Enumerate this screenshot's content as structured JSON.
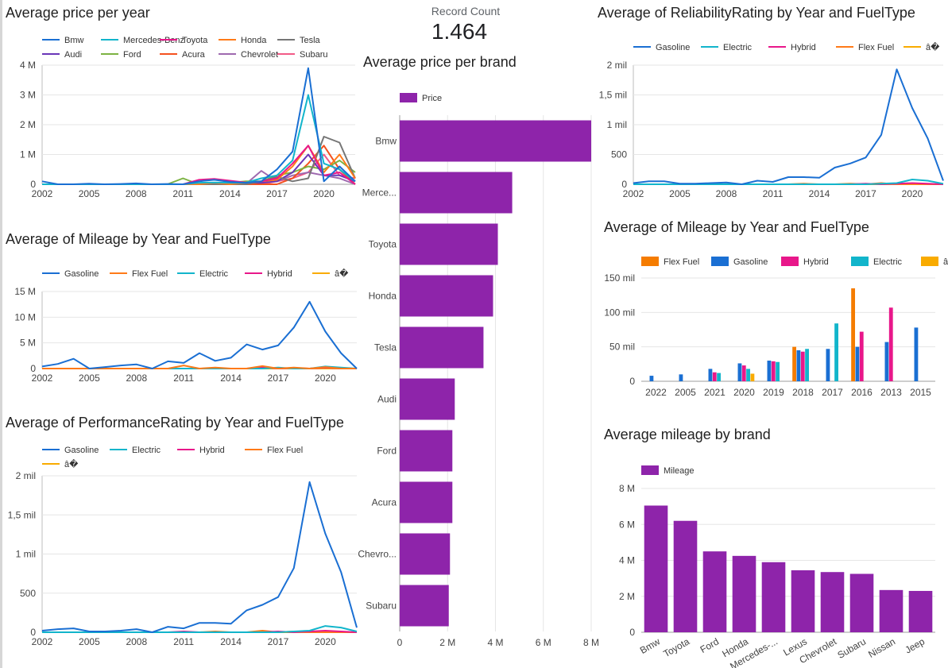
{
  "kpi": {
    "label": "Record Count",
    "value": "1.464"
  },
  "chart_data": [
    {
      "id": "price_per_year",
      "type": "line",
      "title": "Average price per year",
      "x": [
        2002,
        2003,
        2004,
        2005,
        2006,
        2007,
        2008,
        2009,
        2010,
        2011,
        2012,
        2013,
        2014,
        2015,
        2016,
        2017,
        2018,
        2019,
        2020,
        2021,
        2022
      ],
      "xticks": [
        2002,
        2005,
        2008,
        2011,
        2014,
        2017,
        2020
      ],
      "yticks": [
        {
          "v": 0,
          "label": "0"
        },
        {
          "v": 1000000,
          "label": "1 M"
        },
        {
          "v": 2000000,
          "label": "2 M"
        },
        {
          "v": 3000000,
          "label": "3 M"
        },
        {
          "v": 4000000,
          "label": "4 M"
        }
      ],
      "ylim": [
        0,
        4000000
      ],
      "legend_columns": 5,
      "series": [
        {
          "name": "Bmw",
          "color": "#1a6fd3",
          "values": [
            100000,
            0,
            0,
            20000,
            0,
            10000,
            30000,
            0,
            10000,
            0,
            100000,
            150000,
            80000,
            50000,
            100000,
            500000,
            1100000,
            3900000,
            100000,
            600000,
            100000
          ]
        },
        {
          "name": "Mercedes-Benz",
          "color": "#12b5cb",
          "values": [
            0,
            0,
            0,
            0,
            0,
            0,
            0,
            0,
            0,
            0,
            50000,
            60000,
            50000,
            50000,
            200000,
            300000,
            800000,
            3000000,
            700000,
            500000,
            100000
          ]
        },
        {
          "name": "Toyota",
          "color": "#e8178a",
          "values": [
            0,
            0,
            0,
            0,
            0,
            0,
            0,
            0,
            0,
            0,
            150000,
            180000,
            120000,
            60000,
            100000,
            200000,
            700000,
            1300000,
            300000,
            400000,
            0
          ]
        },
        {
          "name": "Honda",
          "color": "#ff7a18",
          "values": [
            0,
            0,
            0,
            0,
            0,
            0,
            0,
            0,
            0,
            0,
            0,
            50000,
            0,
            50000,
            100000,
            150000,
            600000,
            1300000,
            400000,
            1000000,
            200000
          ]
        },
        {
          "name": "Tesla",
          "color": "#767676",
          "values": [
            0,
            0,
            0,
            0,
            0,
            0,
            0,
            0,
            0,
            0,
            0,
            0,
            0,
            0,
            100000,
            250000,
            100000,
            200000,
            1600000,
            1400000,
            200000
          ]
        },
        {
          "name": "Audi",
          "color": "#6a36b8",
          "values": [
            0,
            0,
            0,
            0,
            0,
            0,
            0,
            0,
            0,
            0,
            0,
            0,
            0,
            50000,
            50000,
            100000,
            400000,
            1000000,
            300000,
            300000,
            100000
          ]
        },
        {
          "name": "Ford",
          "color": "#7cb342",
          "values": [
            0,
            0,
            0,
            0,
            0,
            0,
            0,
            0,
            0,
            200000,
            0,
            0,
            50000,
            100000,
            100000,
            300000,
            400000,
            600000,
            500000,
            800000,
            400000
          ]
        },
        {
          "name": "Acura",
          "color": "#f4511e",
          "values": [
            0,
            0,
            0,
            0,
            0,
            0,
            0,
            0,
            0,
            0,
            0,
            0,
            0,
            0,
            0,
            0,
            200000,
            700000,
            1300000,
            500000,
            0
          ]
        },
        {
          "name": "Chevrolet",
          "color": "#9e69af",
          "values": [
            0,
            0,
            0,
            0,
            0,
            0,
            0,
            0,
            0,
            0,
            0,
            0,
            0,
            0,
            450000,
            100000,
            300000,
            400000,
            300000,
            200000,
            0
          ]
        },
        {
          "name": "Subaru",
          "color": "#f25a87",
          "values": [
            0,
            0,
            0,
            0,
            0,
            0,
            0,
            0,
            0,
            0,
            0,
            0,
            0,
            0,
            0,
            100000,
            200000,
            400000,
            1000000,
            300000,
            200000
          ]
        }
      ]
    },
    {
      "id": "mileage_by_year",
      "type": "line",
      "title": "Average of Mileage by Year and FuelType",
      "x": [
        2002,
        2003,
        2004,
        2005,
        2006,
        2007,
        2008,
        2009,
        2010,
        2011,
        2012,
        2013,
        2014,
        2015,
        2016,
        2017,
        2018,
        2019,
        2020,
        2021,
        2022
      ],
      "xticks": [
        2002,
        2005,
        2008,
        2011,
        2014,
        2017,
        2020
      ],
      "yticks": [
        {
          "v": 0,
          "label": "0"
        },
        {
          "v": 5000000,
          "label": "5 M"
        },
        {
          "v": 10000000,
          "label": "10 M"
        },
        {
          "v": 15000000,
          "label": "15 M"
        }
      ],
      "ylim": [
        0,
        15000000
      ],
      "legend_columns": 5,
      "series": [
        {
          "name": "Gasoline",
          "color": "#1a6fd3",
          "values": [
            400000,
            900000,
            1900000,
            0,
            300000,
            600000,
            800000,
            0,
            1400000,
            1100000,
            3000000,
            1500000,
            2100000,
            4700000,
            3700000,
            4500000,
            8000000,
            13000000,
            7200000,
            3000000,
            0
          ]
        },
        {
          "name": "Flex Fuel",
          "color": "#ff7a18",
          "values": [
            0,
            0,
            0,
            0,
            0,
            0,
            0,
            0,
            0,
            600000,
            0,
            200000,
            0,
            0,
            500000,
            0,
            200000,
            0,
            300000,
            0,
            0
          ]
        },
        {
          "name": "Electric",
          "color": "#12b5cb",
          "values": [
            0,
            0,
            0,
            0,
            0,
            0,
            0,
            0,
            0,
            0,
            0,
            0,
            0,
            0,
            0,
            200000,
            0,
            0,
            400000,
            200000,
            0
          ]
        },
        {
          "name": "Hybrid",
          "color": "#e8178a",
          "values": [
            0,
            0,
            0,
            0,
            0,
            0,
            0,
            0,
            0,
            0,
            0,
            0,
            0,
            0,
            300000,
            0,
            100000,
            0,
            200000,
            0,
            0
          ]
        },
        {
          "name": "â�",
          "color": "#f9ab00",
          "values": [
            0,
            0,
            0,
            0,
            0,
            0,
            0,
            0,
            0,
            0,
            0,
            0,
            0,
            0,
            0,
            0,
            0,
            0,
            0,
            0,
            0
          ]
        }
      ]
    },
    {
      "id": "performance_by_year",
      "type": "line",
      "title": "Average of PerformanceRating by Year and FuelType",
      "x": [
        2002,
        2003,
        2004,
        2005,
        2006,
        2007,
        2008,
        2009,
        2010,
        2011,
        2012,
        2013,
        2014,
        2015,
        2016,
        2017,
        2018,
        2019,
        2020,
        2021,
        2022
      ],
      "xticks": [
        2002,
        2005,
        2008,
        2011,
        2014,
        2017,
        2020
      ],
      "yticks": [
        {
          "v": 0,
          "label": "0"
        },
        {
          "v": 500,
          "label": "500"
        },
        {
          "v": 1000,
          "label": "1 mil"
        },
        {
          "v": 1500,
          "label": "1,5 mil"
        },
        {
          "v": 2000,
          "label": "2 mil"
        }
      ],
      "ylim": [
        0,
        2000
      ],
      "legend_columns": 4,
      "series": [
        {
          "name": "Gasoline",
          "color": "#1a6fd3",
          "values": [
            20,
            40,
            50,
            10,
            10,
            20,
            40,
            0,
            70,
            50,
            120,
            120,
            110,
            280,
            350,
            450,
            820,
            1920,
            1260,
            770,
            60
          ]
        },
        {
          "name": "Electric",
          "color": "#12b5cb",
          "values": [
            0,
            0,
            0,
            0,
            0,
            0,
            0,
            0,
            0,
            0,
            0,
            0,
            0,
            0,
            0,
            0,
            10,
            20,
            80,
            60,
            10
          ]
        },
        {
          "name": "Hybrid",
          "color": "#e8178a",
          "values": [
            0,
            0,
            0,
            0,
            0,
            0,
            0,
            0,
            0,
            10,
            0,
            0,
            0,
            0,
            0,
            10,
            0,
            10,
            20,
            10,
            0
          ]
        },
        {
          "name": "Flex Fuel",
          "color": "#ff7a18",
          "values": [
            0,
            0,
            0,
            0,
            0,
            0,
            0,
            0,
            0,
            0,
            0,
            10,
            0,
            0,
            20,
            0,
            10,
            0,
            0,
            0,
            0
          ]
        },
        {
          "name": "â�",
          "color": "#f9ab00",
          "values": [
            0,
            0,
            0,
            0,
            0,
            0,
            0,
            0,
            0,
            0,
            0,
            0,
            0,
            0,
            0,
            0,
            0,
            0,
            0,
            0,
            0
          ]
        }
      ]
    },
    {
      "id": "price_per_brand",
      "type": "bar",
      "orientation": "horizontal",
      "title": "Average price per brand",
      "categories": [
        "Bmw",
        "Merce...",
        "Toyota",
        "Honda",
        "Tesla",
        "Audi",
        "Ford",
        "Acura",
        "Chevro...",
        "Subaru"
      ],
      "series": [
        {
          "name": "Price",
          "color": "#8e24aa",
          "values": [
            8000000,
            4700000,
            4100000,
            3900000,
            3500000,
            2300000,
            2200000,
            2200000,
            2100000,
            2050000
          ]
        }
      ],
      "xticks": [
        {
          "v": 0,
          "label": "0"
        },
        {
          "v": 2000000,
          "label": "2 M"
        },
        {
          "v": 4000000,
          "label": "4 M"
        },
        {
          "v": 6000000,
          "label": "6 M"
        },
        {
          "v": 8000000,
          "label": "8 M"
        }
      ],
      "xlim": [
        0,
        8000000
      ]
    },
    {
      "id": "reliability_by_year",
      "type": "line",
      "title": "Average of ReliabilityRating by Year and FuelType",
      "x": [
        2002,
        2003,
        2004,
        2005,
        2006,
        2007,
        2008,
        2009,
        2010,
        2011,
        2012,
        2013,
        2014,
        2015,
        2016,
        2017,
        2018,
        2019,
        2020,
        2021,
        2022
      ],
      "xticks": [
        2002,
        2005,
        2008,
        2011,
        2014,
        2017,
        2020
      ],
      "yticks": [
        {
          "v": 0,
          "label": "0"
        },
        {
          "v": 500,
          "label": "500"
        },
        {
          "v": 1000,
          "label": "1 mil"
        },
        {
          "v": 1500,
          "label": "1,5 mil"
        },
        {
          "v": 2000,
          "label": "2 mil"
        }
      ],
      "ylim": [
        0,
        2000
      ],
      "legend_columns": 5,
      "series": [
        {
          "name": "Gasoline",
          "color": "#1a6fd3",
          "values": [
            20,
            50,
            50,
            10,
            10,
            20,
            30,
            0,
            60,
            40,
            120,
            120,
            110,
            280,
            350,
            450,
            830,
            1930,
            1280,
            770,
            60
          ]
        },
        {
          "name": "Electric",
          "color": "#12b5cb",
          "values": [
            0,
            0,
            0,
            0,
            0,
            0,
            0,
            0,
            0,
            0,
            0,
            0,
            0,
            0,
            0,
            0,
            10,
            20,
            80,
            60,
            10
          ]
        },
        {
          "name": "Hybrid",
          "color": "#e8178a",
          "values": [
            0,
            0,
            0,
            0,
            0,
            0,
            0,
            0,
            0,
            0,
            0,
            0,
            0,
            0,
            0,
            10,
            0,
            10,
            20,
            10,
            0
          ]
        },
        {
          "name": "Flex Fuel",
          "color": "#ff7a18",
          "values": [
            0,
            0,
            0,
            0,
            0,
            0,
            0,
            0,
            0,
            0,
            0,
            10,
            0,
            0,
            10,
            0,
            20,
            0,
            10,
            0,
            0
          ]
        },
        {
          "name": "â�",
          "color": "#f9ab00",
          "values": [
            0,
            0,
            0,
            0,
            0,
            0,
            0,
            0,
            0,
            0,
            0,
            0,
            0,
            0,
            0,
            0,
            0,
            0,
            0,
            0,
            0
          ]
        }
      ]
    },
    {
      "id": "mileage_by_year_bars",
      "type": "bar",
      "title": "Average of Mileage by Year and FuelType",
      "categories": [
        "2022",
        "2005",
        "2021",
        "2020",
        "2019",
        "2018",
        "2017",
        "2016",
        "2013",
        "2015"
      ],
      "series": [
        {
          "name": "Flex Fuel",
          "color": "#f57c00",
          "values": [
            0,
            0,
            0,
            0,
            0,
            50000,
            0,
            135000,
            0,
            0
          ]
        },
        {
          "name": "Gasoline",
          "color": "#1a6fd3",
          "values": [
            8000,
            10000,
            18000,
            26000,
            30000,
            45000,
            47000,
            50000,
            57000,
            78000
          ]
        },
        {
          "name": "Hybrid",
          "color": "#e8178a",
          "values": [
            0,
            0,
            13000,
            23000,
            29000,
            43000,
            0,
            72000,
            107000,
            0
          ]
        },
        {
          "name": "Electric",
          "color": "#12b5cb",
          "values": [
            0,
            0,
            12000,
            18000,
            28000,
            47000,
            84000,
            0,
            0,
            0
          ]
        },
        {
          "name": "â�",
          "color": "#f9ab00",
          "values": [
            0,
            0,
            0,
            11000,
            0,
            0,
            0,
            0,
            0,
            0
          ]
        }
      ],
      "yticks": [
        {
          "v": 0,
          "label": "0"
        },
        {
          "v": 50000,
          "label": "50 mil"
        },
        {
          "v": 100000,
          "label": "100 mil"
        },
        {
          "v": 150000,
          "label": "150 mil"
        }
      ],
      "ylim": [
        0,
        150000
      ]
    },
    {
      "id": "mileage_by_brand",
      "type": "bar",
      "title": "Average mileage by brand",
      "categories": [
        "Bmw",
        "Toyota",
        "Ford",
        "Honda",
        "Mercedes-...",
        "Lexus",
        "Chevrolet",
        "Subaru",
        "Nissan",
        "Jeep"
      ],
      "series": [
        {
          "name": "Mileage",
          "color": "#8e24aa",
          "values": [
            7050000,
            6200000,
            4500000,
            4250000,
            3900000,
            3450000,
            3350000,
            3250000,
            2350000,
            2300000
          ]
        }
      ],
      "yticks": [
        {
          "v": 0,
          "label": "0"
        },
        {
          "v": 2000000,
          "label": "2 M"
        },
        {
          "v": 4000000,
          "label": "4 M"
        },
        {
          "v": 6000000,
          "label": "6 M"
        },
        {
          "v": 8000000,
          "label": "8 M"
        }
      ],
      "ylim": [
        0,
        8000000
      ]
    }
  ]
}
